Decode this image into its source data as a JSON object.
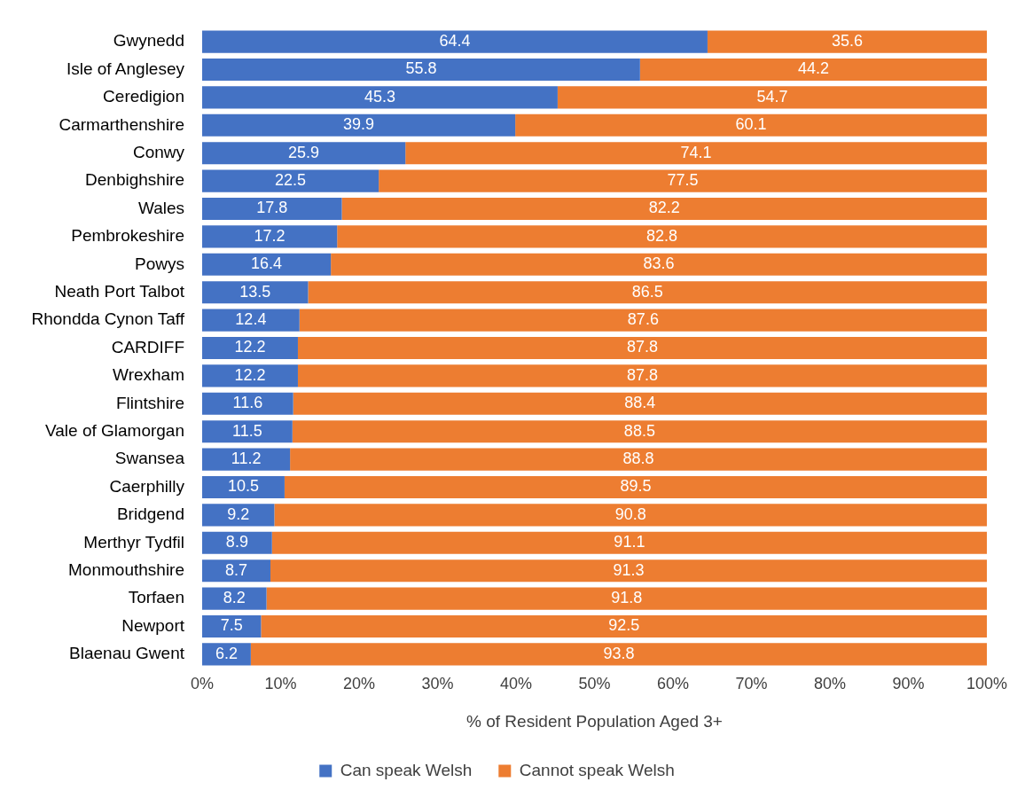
{
  "chart_data": {
    "type": "bar",
    "orientation": "horizontal",
    "stacked": true,
    "xlabel": "% of Resident Population Aged 3+",
    "categories": [
      "Gwynedd",
      "Isle of Anglesey",
      "Ceredigion",
      "Carmarthenshire",
      "Conwy",
      "Denbighshire",
      "Wales",
      "Pembrokeshire",
      "Powys",
      "Neath Port Talbot",
      "Rhondda Cynon Taff",
      "CARDIFF",
      "Wrexham",
      "Flintshire",
      "Vale of Glamorgan",
      "Swansea",
      "Caerphilly",
      "Bridgend",
      "Merthyr Tydfil",
      "Monmouthshire",
      "Torfaen",
      "Newport",
      "Blaenau Gwent"
    ],
    "series": [
      {
        "name": "Can speak Welsh",
        "color": "#4472c4",
        "values": [
          64.4,
          55.8,
          45.3,
          39.9,
          25.9,
          22.5,
          17.8,
          17.2,
          16.4,
          13.5,
          12.4,
          12.2,
          12.2,
          11.6,
          11.5,
          11.2,
          10.5,
          9.2,
          8.9,
          8.7,
          8.2,
          7.5,
          6.2
        ]
      },
      {
        "name": "Cannot speak Welsh",
        "color": "#ed7d31",
        "values": [
          35.6,
          44.2,
          54.7,
          60.1,
          74.1,
          77.5,
          82.2,
          82.8,
          83.6,
          86.5,
          87.6,
          87.8,
          87.8,
          88.4,
          88.5,
          88.8,
          89.5,
          90.8,
          91.1,
          91.3,
          91.8,
          92.5,
          93.8
        ]
      }
    ],
    "xlim": [
      0,
      100
    ],
    "xticks": [
      {
        "value": 0,
        "label": "0%"
      },
      {
        "value": 10,
        "label": "10%"
      },
      {
        "value": 20,
        "label": "20%"
      },
      {
        "value": 30,
        "label": "30%"
      },
      {
        "value": 40,
        "label": "40%"
      },
      {
        "value": 50,
        "label": "50%"
      },
      {
        "value": 60,
        "label": "60%"
      },
      {
        "value": 70,
        "label": "70%"
      },
      {
        "value": 80,
        "label": "80%"
      },
      {
        "value": 90,
        "label": "90%"
      },
      {
        "value": 100,
        "label": "100%"
      }
    ],
    "data_labels": true,
    "legend": "bottom",
    "grid": false
  }
}
